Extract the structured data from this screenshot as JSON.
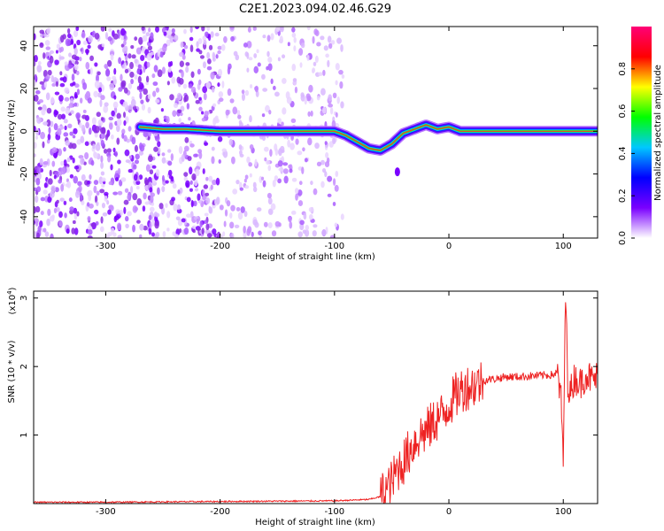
{
  "title": "C2E1.2023.094.02.46.G29",
  "chart_data": [
    {
      "type": "heatmap",
      "title": "C2E1.2023.094.02.46.G29",
      "xlabel": "Height of straight line (km)",
      "ylabel": "Frequency (Hz)",
      "xlim": [
        -363,
        130
      ],
      "ylim": [
        -50,
        49
      ],
      "xticks": [
        -300,
        -200,
        -100,
        0,
        100
      ],
      "yticks": [
        -40,
        -20,
        0,
        20,
        40
      ],
      "colorbar": {
        "label": "Normalized spectral amplitude",
        "range": [
          0,
          1
        ],
        "ticks": [
          "0.0",
          "0.2",
          "0.4",
          "0.6",
          "0.8"
        ],
        "colors": [
          "#ffffff",
          "#7a00ff",
          "#0000ff",
          "#00c8ff",
          "#00ff00",
          "#ffff00",
          "#ff0000",
          "#ff0077"
        ]
      },
      "ridge": {
        "x": [
          -270,
          -250,
          -230,
          -200,
          -150,
          -100,
          -90,
          -80,
          -70,
          -60,
          -50,
          -40,
          -30,
          -20,
          -10,
          0,
          10,
          20,
          60,
          100,
          130
        ],
        "y": [
          2,
          1,
          1,
          0,
          0,
          0,
          -2,
          -5,
          -8,
          -9,
          -6,
          -1,
          1,
          3,
          1,
          2,
          0,
          0,
          0,
          0,
          0
        ]
      }
    },
    {
      "type": "line",
      "xlabel": "Height of straight line (km)",
      "ylabel": "SNR (10 * v/v)",
      "multiplier_label": "(x10",
      "multiplier_exp": "4",
      "xlim": [
        -363,
        130
      ],
      "ylim": [
        0,
        3.1
      ],
      "xticks": [
        -300,
        -200,
        -100,
        0,
        100
      ],
      "yticks": [
        1,
        2,
        3
      ],
      "series": [
        {
          "color": "#ee2222",
          "x": [
            -363,
            -300,
            -200,
            -100,
            -70,
            -60,
            -50,
            -45,
            -40,
            -35,
            -30,
            -25,
            -20,
            -15,
            -10,
            -5,
            0,
            5,
            10,
            15,
            20,
            25,
            30,
            40,
            50,
            60,
            70,
            80,
            90,
            95,
            98,
            100,
            102,
            104,
            106,
            110,
            115,
            120,
            125,
            130
          ],
          "y": [
            0.02,
            0.02,
            0.03,
            0.04,
            0.06,
            0.1,
            0.3,
            0.5,
            0.6,
            0.75,
            0.9,
            1.0,
            1.05,
            1.15,
            1.25,
            1.3,
            1.45,
            1.55,
            1.65,
            1.7,
            1.72,
            1.75,
            1.8,
            1.82,
            1.85,
            1.85,
            1.86,
            1.87,
            1.88,
            1.9,
            1.5,
            0.65,
            3.05,
            1.8,
            1.6,
            1.85,
            1.75,
            1.9,
            1.8,
            1.85
          ]
        }
      ]
    }
  ]
}
